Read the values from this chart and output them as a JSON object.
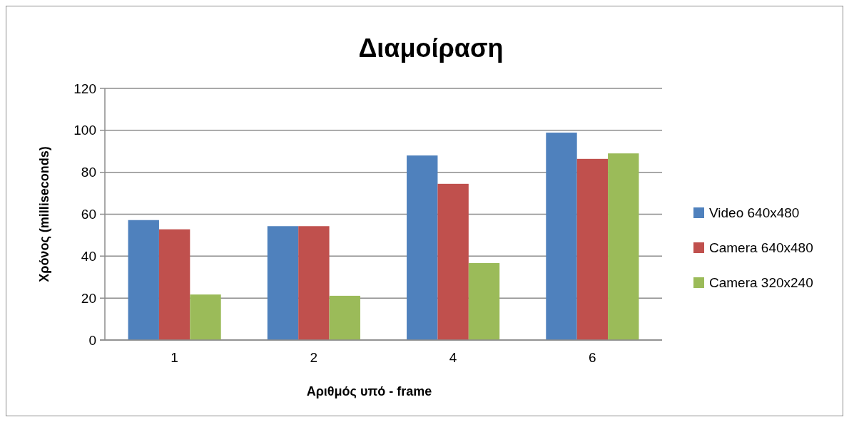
{
  "chart_data": {
    "type": "bar",
    "title": "Διαμοίραση",
    "xlabel": "Αριθμός υπό - frame",
    "ylabel": "Χρόνος (milliseconds)",
    "categories": [
      "1",
      "2",
      "4",
      "6"
    ],
    "series": [
      {
        "name": "Video 640x480",
        "color": "#4f81bd",
        "values": [
          57.2,
          54.3,
          88.0,
          98.9
        ]
      },
      {
        "name": "Camera 640x480",
        "color": "#c0504d",
        "values": [
          52.8,
          54.3,
          74.5,
          86.4
        ]
      },
      {
        "name": "Camera 320x240",
        "color": "#9bbb59",
        "values": [
          21.7,
          21.1,
          36.7,
          89.0
        ]
      }
    ],
    "ylim": [
      0,
      120
    ],
    "yticks": [
      0,
      20,
      40,
      60,
      80,
      100,
      120
    ],
    "grid": "y",
    "legend": "right"
  }
}
